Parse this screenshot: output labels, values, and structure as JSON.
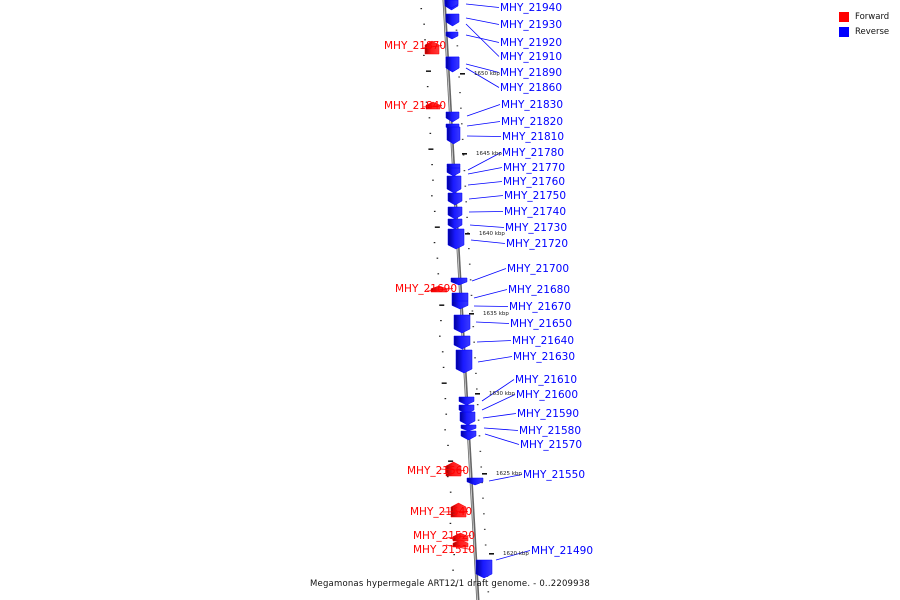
{
  "legend": {
    "forward_label": "Forward",
    "reverse_label": "Reverse",
    "forward_color": "#ff0000",
    "reverse_color": "#0000ff"
  },
  "caption": "Megamonas hypermegale ART12/1 draft genome. - 0..2209938",
  "scale_marks": [
    {
      "label": "1650 kbp"
    },
    {
      "label": "1645 kbp"
    },
    {
      "label": "1640 kbp"
    },
    {
      "label": "1635 kbp"
    },
    {
      "label": "1630 kbp"
    },
    {
      "label": "1625 kbp"
    },
    {
      "label": "1620 kbp"
    }
  ],
  "genes": [
    {
      "name": "MHY_21940",
      "strand": "reverse"
    },
    {
      "name": "MHY_21930",
      "strand": "reverse"
    },
    {
      "name": "MHY_21920",
      "strand": "reverse"
    },
    {
      "name": "MHY_21910",
      "strand": "reverse"
    },
    {
      "name": "MHY_21890",
      "strand": "reverse"
    },
    {
      "name": "MHY_21860",
      "strand": "reverse"
    },
    {
      "name": "MHY_21870",
      "strand": "forward"
    },
    {
      "name": "MHY_21840",
      "strand": "forward"
    },
    {
      "name": "MHY_21830",
      "strand": "reverse"
    },
    {
      "name": "MHY_21820",
      "strand": "reverse"
    },
    {
      "name": "MHY_21810",
      "strand": "reverse"
    },
    {
      "name": "MHY_21780",
      "strand": "reverse"
    },
    {
      "name": "MHY_21770",
      "strand": "reverse"
    },
    {
      "name": "MHY_21760",
      "strand": "reverse"
    },
    {
      "name": "MHY_21750",
      "strand": "reverse"
    },
    {
      "name": "MHY_21740",
      "strand": "reverse"
    },
    {
      "name": "MHY_21730",
      "strand": "reverse"
    },
    {
      "name": "MHY_21720",
      "strand": "reverse"
    },
    {
      "name": "MHY_21700",
      "strand": "reverse"
    },
    {
      "name": "MHY_21690",
      "strand": "forward"
    },
    {
      "name": "MHY_21680",
      "strand": "reverse"
    },
    {
      "name": "MHY_21670",
      "strand": "reverse"
    },
    {
      "name": "MHY_21650",
      "strand": "reverse"
    },
    {
      "name": "MHY_21640",
      "strand": "reverse"
    },
    {
      "name": "MHY_21630",
      "strand": "reverse"
    },
    {
      "name": "MHY_21610",
      "strand": "reverse"
    },
    {
      "name": "MHY_21600",
      "strand": "reverse"
    },
    {
      "name": "MHY_21590",
      "strand": "reverse"
    },
    {
      "name": "MHY_21580",
      "strand": "reverse"
    },
    {
      "name": "MHY_21570",
      "strand": "reverse"
    },
    {
      "name": "MHY_21560",
      "strand": "forward"
    },
    {
      "name": "MHY_21550",
      "strand": "reverse"
    },
    {
      "name": "MHY_21540",
      "strand": "forward"
    },
    {
      "name": "MHY_21520",
      "strand": "forward"
    },
    {
      "name": "MHY_21510",
      "strand": "forward"
    },
    {
      "name": "MHY_21490",
      "strand": "reverse"
    }
  ]
}
